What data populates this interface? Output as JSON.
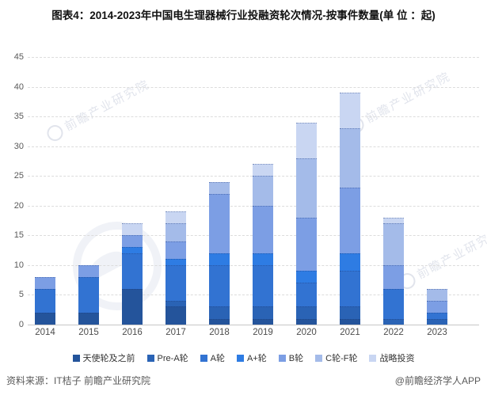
{
  "title": "图表4：2014-2023年中国电生理器械行业投融资轮次情况-按事件数量(单 位 ：起)",
  "chart_data": {
    "type": "bar",
    "stacked": true,
    "title": "图表4：2014-2023年中国电生理器械行业投融资轮次情况-按事件数量(单 位 ：起)",
    "unit": "起",
    "categories": [
      "2014",
      "2015",
      "2016",
      "2017",
      "2018",
      "2019",
      "2020",
      "2021",
      "2022",
      "2023"
    ],
    "series": [
      {
        "name": "天使轮及之前",
        "color": "#24549B",
        "values": [
          2,
          2,
          6,
          3,
          1,
          1,
          1,
          1,
          0,
          0
        ]
      },
      {
        "name": "Pre-A轮",
        "color": "#2A63B5",
        "values": [
          0,
          0,
          0,
          1,
          2,
          2,
          2,
          2,
          1,
          1
        ]
      },
      {
        "name": "A轮",
        "color": "#3273D2",
        "values": [
          4,
          6,
          6,
          6,
          7,
          7,
          4,
          6,
          5,
          1
        ]
      },
      {
        "name": "A+轮",
        "color": "#2E7CE3",
        "values": [
          0,
          0,
          1,
          1,
          2,
          2,
          2,
          3,
          0,
          0
        ]
      },
      {
        "name": "B轮",
        "color": "#7C9EE4",
        "values": [
          2,
          2,
          2,
          3,
          10,
          8,
          9,
          11,
          4,
          2
        ]
      },
      {
        "name": "C轮-F轮",
        "color": "#A4BBE9",
        "values": [
          0,
          0,
          0,
          3,
          2,
          5,
          10,
          10,
          7,
          2
        ]
      },
      {
        "name": "战略投资",
        "color": "#C9D6F2",
        "values": [
          0,
          0,
          2,
          2,
          0,
          2,
          6,
          6,
          1,
          0
        ]
      }
    ],
    "totals": [
      8,
      10,
      17,
      19,
      24,
      27,
      34,
      39,
      18,
      6
    ],
    "ylim": [
      0,
      45
    ],
    "ytick_step": 5,
    "grid": true,
    "legend_position": "bottom"
  },
  "footer": {
    "source": "资料来源：IT桔子 前瞻产业研究院",
    "brand": "@前瞻经济学人APP"
  },
  "watermark": {
    "text": "前瞻产业研究院"
  }
}
